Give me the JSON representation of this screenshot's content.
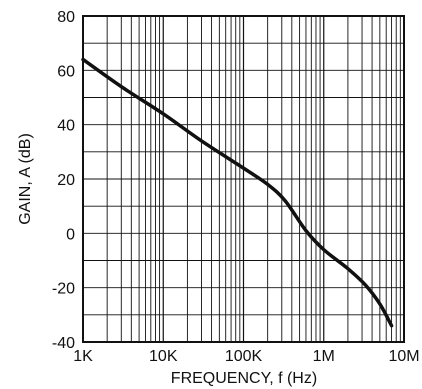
{
  "chart_data": {
    "type": "line",
    "x_scale": "log",
    "xlim": [
      1000,
      10000000
    ],
    "ylim": [
      -40,
      80
    ],
    "grid": true,
    "xlabel": "FREQUENCY, f (Hz)",
    "ylabel": "GAIN, A (dB)",
    "x_ticks": [
      {
        "value": 1000,
        "label": "1K"
      },
      {
        "value": 10000,
        "label": "10K"
      },
      {
        "value": 100000,
        "label": "100K"
      },
      {
        "value": 1000000,
        "label": "1M"
      },
      {
        "value": 10000000,
        "label": "10M"
      }
    ],
    "y_ticks": [
      {
        "value": 80,
        "label": "80"
      },
      {
        "value": 60,
        "label": "60"
      },
      {
        "value": 40,
        "label": "40"
      },
      {
        "value": 20,
        "label": "20"
      },
      {
        "value": 0,
        "label": "0"
      },
      {
        "value": -20,
        "label": "-20"
      },
      {
        "value": -40,
        "label": "-40"
      }
    ],
    "series": [
      {
        "color": "#111111",
        "points": [
          {
            "x": 1000,
            "y": 64
          },
          {
            "x": 3000,
            "y": 54
          },
          {
            "x": 10000,
            "y": 44
          },
          {
            "x": 30000,
            "y": 34
          },
          {
            "x": 100000,
            "y": 24
          },
          {
            "x": 200000,
            "y": 18
          },
          {
            "x": 330000,
            "y": 12
          },
          {
            "x": 600000,
            "y": 1
          },
          {
            "x": 1000000,
            "y": -6
          },
          {
            "x": 2000000,
            "y": -13
          },
          {
            "x": 3300000,
            "y": -19
          },
          {
            "x": 5000000,
            "y": -26
          },
          {
            "x": 7000000,
            "y": -34
          }
        ]
      }
    ]
  }
}
